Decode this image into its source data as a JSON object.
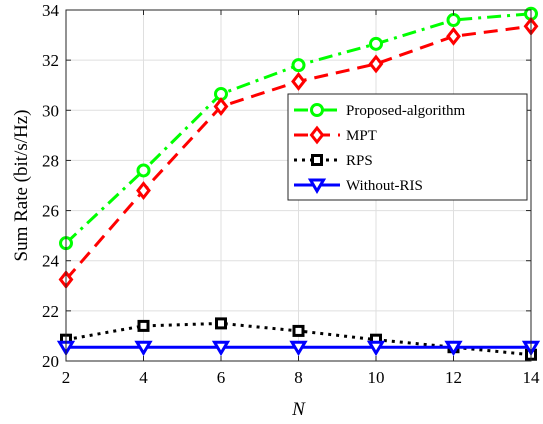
{
  "chart_data": {
    "type": "line",
    "xlabel": "N",
    "ylabel": "Sum Rate (bit/s/Hz)",
    "xlim": [
      2,
      14
    ],
    "ylim": [
      20,
      34
    ],
    "xticks": [
      "2",
      "4",
      "6",
      "8",
      "10",
      "12",
      "14"
    ],
    "yticks": [
      "20",
      "22",
      "24",
      "26",
      "28",
      "30",
      "32",
      "34"
    ],
    "grid": true,
    "legend_position": "center-right",
    "x": [
      2,
      4,
      6,
      8,
      10,
      12,
      14
    ],
    "series": [
      {
        "name": "Proposed-algorithm",
        "values": [
          24.7,
          27.6,
          30.65,
          31.8,
          32.65,
          33.6,
          33.85
        ],
        "color": "#00ff00",
        "dash": "dash-dot",
        "marker": "circle"
      },
      {
        "name": "MPT",
        "values": [
          23.25,
          26.8,
          30.15,
          31.15,
          31.85,
          32.95,
          33.35
        ],
        "color": "#ff0000",
        "dash": "dashed",
        "marker": "diamond"
      },
      {
        "name": "RPS",
        "values": [
          20.85,
          21.4,
          21.5,
          21.2,
          20.85,
          20.55,
          20.25
        ],
        "color": "#000000",
        "dash": "dotted",
        "marker": "square"
      },
      {
        "name": "Without-RIS",
        "values": [
          20.55,
          20.55,
          20.55,
          20.55,
          20.55,
          20.55,
          20.55
        ],
        "color": "#0000ff",
        "dash": "solid",
        "marker": "triangle-down"
      }
    ]
  }
}
